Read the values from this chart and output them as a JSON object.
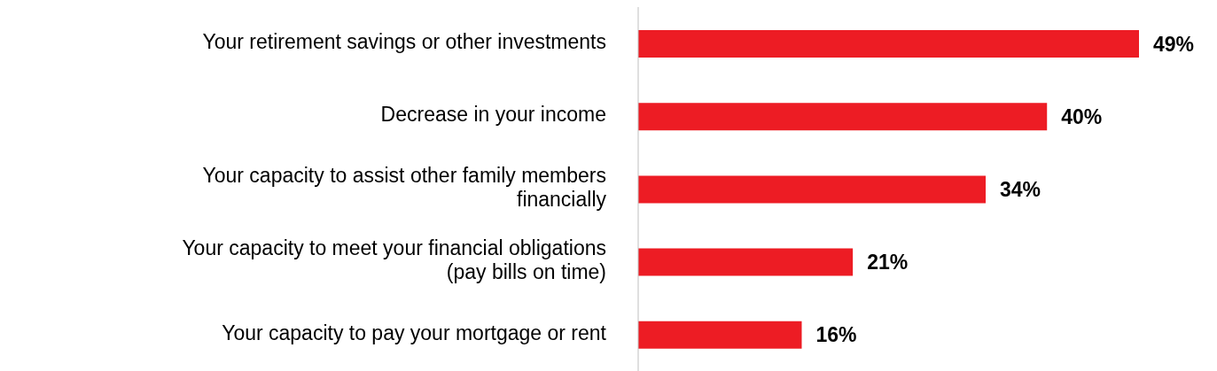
{
  "chart_data": {
    "type": "bar",
    "orientation": "horizontal",
    "categories": [
      "Your retirement savings or other investments",
      "Decrease in your income",
      "Your capacity to assist other family members financially",
      "Your capacity to meet your financial obligations (pay bills on time)",
      "Your capacity to pay your mortgage or rent"
    ],
    "values": [
      49,
      40,
      34,
      21,
      16
    ],
    "value_labels": [
      "49%",
      "40%",
      "34%",
      "21%",
      "16%"
    ],
    "color": "#ed1c24"
  }
}
